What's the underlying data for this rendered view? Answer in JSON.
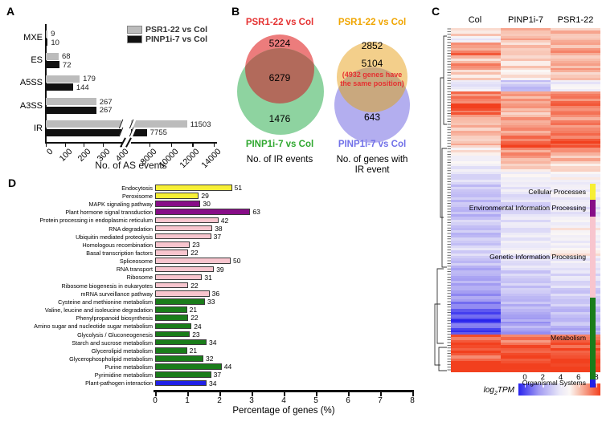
{
  "panels": {
    "a": "A",
    "b": "B",
    "c": "C",
    "d": "D"
  },
  "chart_data": [
    {
      "id": "as-events-bar",
      "type": "bar",
      "orientation": "horizontal",
      "title": "",
      "xlabel": "No. of AS events",
      "categories": [
        "MXE",
        "ES",
        "A5SS",
        "A3SS",
        "IR"
      ],
      "series": [
        {
          "name": "PSR1-22 vs Col",
          "color": "#bcbcbc",
          "values": [
            9,
            68,
            179,
            267,
            11503
          ]
        },
        {
          "name": "PINP1i-7 vs Col",
          "color": "#111111",
          "values": [
            10,
            72,
            144,
            267,
            7755
          ]
        }
      ],
      "axis_break": {
        "low_ticks": [
          0,
          100,
          200,
          300,
          400
        ],
        "high_ticks": [
          8000,
          10000,
          12000,
          14000
        ],
        "low_max": 450,
        "high_min": 8000
      }
    },
    {
      "id": "venn-ir-events",
      "type": "venn",
      "caption": "No. of IR events",
      "overlap": "6279",
      "overlap_color": "#b26a5b",
      "sets": [
        {
          "label": "PSR1-22 vs Col",
          "unique": "5224",
          "color": "#ec7c7c",
          "label_color": "#e53131"
        },
        {
          "label": "PINP1i-7 vs Col",
          "unique": "1476",
          "color": "#8ed3a0",
          "label_color": "#2fa82f"
        }
      ]
    },
    {
      "id": "venn-ir-genes",
      "type": "venn",
      "caption_line1": "No. of genes with",
      "caption_line2": "IR event",
      "overlap": "5104",
      "overlap_color": "#c9a87e",
      "overlap_note_line1": "(4932 genes have",
      "overlap_note_line2": "the same position)",
      "note_color": "#e53131",
      "sets": [
        {
          "label": "PSR1-22 vs Col",
          "unique": "2852",
          "color": "#f3cf8b",
          "label_color": "#f0a500"
        },
        {
          "label": "PINP1i-7 vs Col",
          "unique": "643",
          "color": "#b3aeef",
          "label_color": "#7070e8"
        }
      ]
    },
    {
      "id": "expression-heatmap",
      "type": "heatmap",
      "columns": [
        "Col",
        "PINP1i-7",
        "PSR1-22"
      ],
      "colorbar": {
        "label_prefix": "log",
        "label_sub": "2",
        "label_suffix": "TPM",
        "ticks": [
          0,
          2,
          4,
          6,
          8
        ],
        "stops": [
          [
            0,
            "#2823ee"
          ],
          [
            2,
            "#a29bf2"
          ],
          [
            4,
            "#e9e7f8"
          ],
          [
            5,
            "#fbf7f5"
          ],
          [
            6,
            "#f8beab"
          ],
          [
            8,
            "#f2401e"
          ]
        ]
      },
      "bands": [
        [
          0.02,
          5.5,
          6.0,
          6.0
        ],
        [
          0.015,
          4.3,
          6.2,
          6.0
        ],
        [
          0.02,
          6.5,
          5.8,
          6.2
        ],
        [
          0.012,
          7.2,
          6.0,
          6.5
        ],
        [
          0.02,
          5.8,
          5.6,
          6.0
        ],
        [
          0.015,
          6.8,
          5.6,
          6.3
        ],
        [
          0.025,
          5.6,
          5.2,
          5.8
        ],
        [
          0.015,
          4.0,
          3.3,
          4.3
        ],
        [
          0.012,
          4.3,
          2.9,
          4.5
        ],
        [
          0.03,
          7.0,
          6.4,
          7.0
        ],
        [
          0.012,
          8.3,
          6.8,
          7.2
        ],
        [
          0.015,
          7.4,
          6.0,
          7.0
        ],
        [
          0.02,
          6.2,
          6.4,
          6.6
        ],
        [
          0.025,
          6.0,
          6.6,
          6.8
        ],
        [
          0.02,
          5.8,
          7.0,
          7.2
        ],
        [
          0.015,
          6.0,
          7.7,
          7.7
        ],
        [
          0.02,
          5.2,
          6.6,
          6.6
        ],
        [
          0.02,
          4.6,
          6.2,
          6.0
        ],
        [
          0.02,
          4.2,
          5.6,
          5.5
        ],
        [
          0.025,
          3.6,
          4.6,
          4.8
        ],
        [
          0.03,
          3.2,
          4.2,
          4.4
        ],
        [
          0.025,
          3.0,
          3.8,
          4.2
        ],
        [
          0.03,
          2.8,
          3.6,
          4.0
        ],
        [
          0.02,
          3.4,
          4.0,
          4.6
        ],
        [
          0.025,
          3.0,
          3.8,
          5.0
        ],
        [
          0.03,
          3.2,
          4.2,
          4.4
        ],
        [
          0.02,
          3.6,
          4.6,
          5.2
        ],
        [
          0.03,
          3.0,
          3.8,
          4.2
        ],
        [
          0.025,
          2.6,
          3.4,
          3.8
        ],
        [
          0.03,
          2.4,
          3.2,
          3.6
        ],
        [
          0.02,
          2.0,
          3.0,
          3.4
        ],
        [
          0.025,
          1.6,
          2.8,
          3.2
        ],
        [
          0.02,
          0.8,
          2.4,
          3.0
        ],
        [
          0.015,
          0.4,
          2.2,
          2.8
        ],
        [
          0.012,
          1.4,
          2.6,
          3.0
        ],
        [
          0.015,
          0.5,
          2.0,
          2.6
        ],
        [
          0.02,
          7.4,
          7.0,
          7.2
        ],
        [
          0.025,
          7.8,
          7.6,
          7.6
        ],
        [
          0.02,
          7.2,
          8.0,
          7.8
        ],
        [
          0.025,
          8.4,
          8.2,
          8.3
        ]
      ]
    },
    {
      "id": "kegg-pathways-bar",
      "type": "bar",
      "orientation": "horizontal",
      "xlabel": "Percentage of genes (%)",
      "xlim": [
        0,
        8
      ],
      "xticks": [
        0,
        1,
        2,
        3,
        4,
        5,
        6,
        7,
        8
      ],
      "groups": [
        {
          "name": "Cellular Processes",
          "color": "#f7ef35"
        },
        {
          "name": "Environmental Information Processing",
          "color": "#870d87"
        },
        {
          "name": "Genetic Information Processing",
          "color": "#f8c5ce"
        },
        {
          "name": "Metabolism",
          "color": "#1a7d1a"
        },
        {
          "name": "Organismal Systems",
          "color": "#2121e8"
        }
      ],
      "rows": [
        {
          "label": "Endocytosis",
          "group": 0,
          "count": 51,
          "pct": 2.39
        },
        {
          "label": "Peroxisome",
          "group": 0,
          "count": 29,
          "pct": 1.36
        },
        {
          "label": "MAPK signaling pathway",
          "group": 1,
          "count": 30,
          "pct": 1.41
        },
        {
          "label": "Plant hormone signal transduction",
          "group": 1,
          "count": 63,
          "pct": 2.96
        },
        {
          "label": "Protein processing in endoplasmic reticulum",
          "group": 2,
          "count": 42,
          "pct": 1.97
        },
        {
          "label": "RNA degradation",
          "group": 2,
          "count": 38,
          "pct": 1.78
        },
        {
          "label": "Ubiquitin mediated proteolysis",
          "group": 2,
          "count": 37,
          "pct": 1.74
        },
        {
          "label": "Homologous recombination",
          "group": 2,
          "count": 23,
          "pct": 1.08
        },
        {
          "label": "Basal transcription factors",
          "group": 2,
          "count": 22,
          "pct": 1.03
        },
        {
          "label": "Spliceosome",
          "group": 2,
          "count": 50,
          "pct": 2.35
        },
        {
          "label": "RNA transport",
          "group": 2,
          "count": 39,
          "pct": 1.83
        },
        {
          "label": "Ribosome",
          "group": 2,
          "count": 31,
          "pct": 1.46
        },
        {
          "label": "Ribosome biogenesis in eukaryotes",
          "group": 2,
          "count": 22,
          "pct": 1.03
        },
        {
          "label": "mRNA surveillance pathway",
          "group": 2,
          "count": 36,
          "pct": 1.69
        },
        {
          "label": "Cysteine and methionine metabolism",
          "group": 3,
          "count": 33,
          "pct": 1.55
        },
        {
          "label": "Valine, leucine and isoleucine degradation",
          "group": 3,
          "count": 21,
          "pct": 0.99
        },
        {
          "label": "Phenylpropanoid biosynthesis",
          "group": 3,
          "count": 22,
          "pct": 1.03
        },
        {
          "label": "Amino sugar and nucleotide sugar metabolism",
          "group": 3,
          "count": 24,
          "pct": 1.13
        },
        {
          "label": "Glycolysis / Gluconeogenesis",
          "group": 3,
          "count": 23,
          "pct": 1.08
        },
        {
          "label": "Starch and sucrose metabolism",
          "group": 3,
          "count": 34,
          "pct": 1.6
        },
        {
          "label": "Glycerolipid metabolism",
          "group": 3,
          "count": 21,
          "pct": 0.99
        },
        {
          "label": "Glycerophospholipid metabolism",
          "group": 3,
          "count": 32,
          "pct": 1.5
        },
        {
          "label": "Purine metabolism",
          "group": 3,
          "count": 44,
          "pct": 2.07
        },
        {
          "label": "Pyrimidine metabolism",
          "group": 3,
          "count": 37,
          "pct": 1.74
        },
        {
          "label": "Plant-pathogen interaction",
          "group": 4,
          "count": 34,
          "pct": 1.6
        }
      ]
    }
  ]
}
